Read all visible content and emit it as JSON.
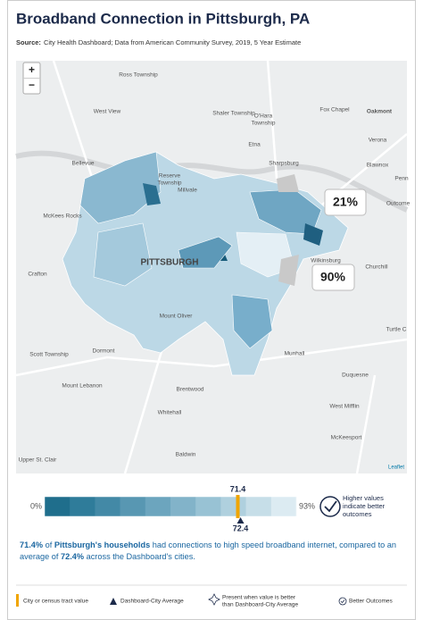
{
  "title": "Broadband Connection in Pittsburgh, PA",
  "source": {
    "label": "Source:",
    "text": "City Health Dashboard; Data from American Community Survey, 2019, 5 Year Estimate"
  },
  "map": {
    "zoom_in": "+",
    "zoom_out": "−",
    "city_label": "PITTSBURGH",
    "places": [
      "Ross Township",
      "Shaler Township",
      "Fox Chapel",
      "Oakmont",
      "West View",
      "O'Hara",
      "Township",
      "Etna",
      "Verona",
      "Sharpsburg",
      "Blawnox",
      "Bellevue",
      "Reserve",
      "Township",
      "Millvale",
      "McKees Rocks",
      "Wilkinsburg",
      "Churchill",
      "Crafton",
      "Mount Oliver",
      "Dormont",
      "Scott Township",
      "Munhall",
      "Mount Lebanon",
      "Brentwood",
      "Duquesne",
      "West Mifflin",
      "Whitehall",
      "McKeesport",
      "Baldwin",
      "Upper St. Clair",
      "Penn",
      "Outcome",
      "Turtle C"
    ],
    "callouts": [
      "21%",
      "90%"
    ],
    "attribution": "Leaflet"
  },
  "scale": {
    "min": {
      "value": 0,
      "label": "0%"
    },
    "max": {
      "value": 93,
      "label": "93%"
    },
    "city_value": 71.4,
    "average": 72.4,
    "badge_text": [
      "Higher values",
      "indicate better",
      "outcomes"
    ]
  },
  "summary": [
    "71.4%",
    " of ",
    "Pittsburgh's households",
    " had connections to high speed broadband internet, compared to an average of ",
    "72.4%",
    " across the Dashboard's cities."
  ],
  "legend": [
    "City or census tract value",
    "Dashboard-City Average",
    "Present when value is better",
    "than Dashboard-City Average",
    "Better Outcomes"
  ]
}
